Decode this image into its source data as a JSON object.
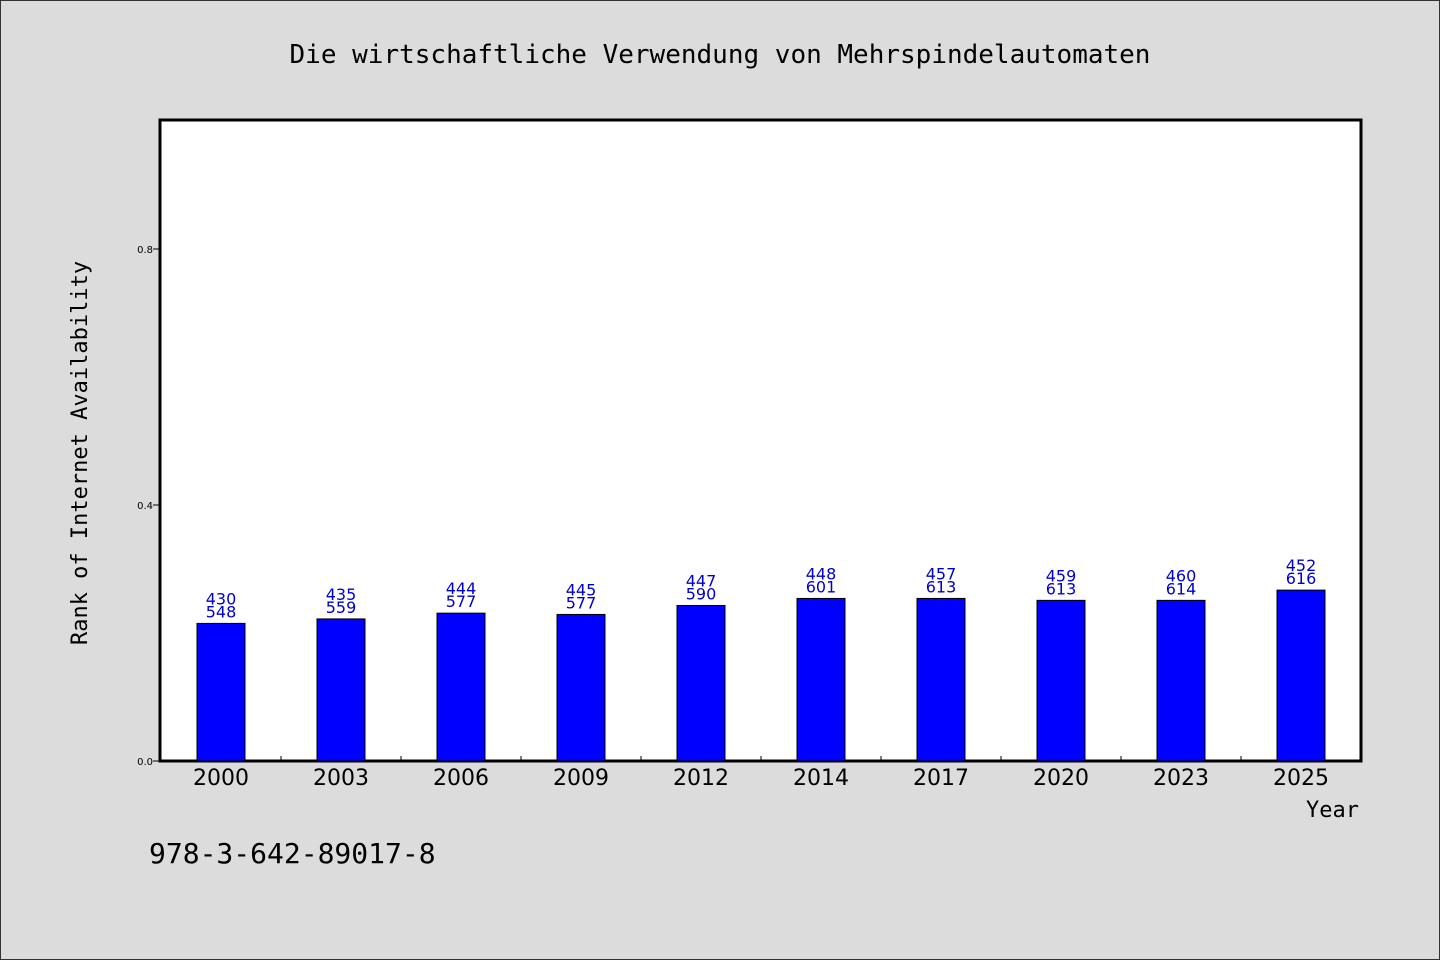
{
  "chart_data": {
    "type": "bar",
    "title": "Die wirtschaftliche Verwendung von Mehrspindelautomaten",
    "xlabel": "Year",
    "ylabel": "Rank of Internet Availability",
    "categories": [
      "2000",
      "2003",
      "2006",
      "2009",
      "2012",
      "2014",
      "2017",
      "2020",
      "2023",
      "2025"
    ],
    "values": [
      0.215,
      0.222,
      0.231,
      0.229,
      0.243,
      0.254,
      0.254,
      0.251,
      0.251,
      0.267
    ],
    "bar_labels": [
      [
        "430",
        "548"
      ],
      [
        "435",
        "559"
      ],
      [
        "444",
        "577"
      ],
      [
        "445",
        "577"
      ],
      [
        "447",
        "590"
      ],
      [
        "448",
        "601"
      ],
      [
        "457",
        "613"
      ],
      [
        "459",
        "613"
      ],
      [
        "460",
        "614"
      ],
      [
        "452",
        "616"
      ]
    ],
    "yticks": [
      "0.0",
      "0.4",
      "0.8"
    ],
    "ytick_values": [
      0.0,
      0.4,
      0.8
    ],
    "ylim": [
      0,
      1.0
    ],
    "grid": false,
    "legend": "none",
    "footnote": "978-3-642-89017-8",
    "bar_color": "#0000ff",
    "label_color": "#0000cc",
    "background": "#dcdcdc",
    "plot_background": "#ffffff"
  }
}
